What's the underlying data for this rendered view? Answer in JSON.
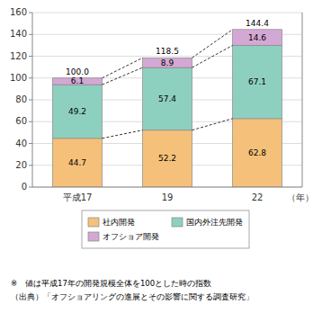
{
  "chart_data": {
    "type": "bar",
    "stacked": true,
    "data_labels": true,
    "grid": true,
    "legend": "bottom",
    "categories": [
      "平成17",
      "19",
      "22"
    ],
    "xlabel": "（年）",
    "series": [
      {
        "name": "社内開発",
        "color": "#f5c07a",
        "values": [
          44.7,
          52.2,
          62.8
        ]
      },
      {
        "name": "国内外注先開発",
        "color": "#8ed0c0",
        "values": [
          49.2,
          57.4,
          67.1
        ]
      },
      {
        "name": "オフショア開発",
        "color": "#d4a8d4",
        "values": [
          6.1,
          8.9,
          14.6
        ]
      }
    ],
    "totals": [
      100.0,
      118.5,
      144.4
    ],
    "total_labels": [
      "100.0",
      "118.5",
      "144.4"
    ],
    "ylim": [
      0,
      160
    ],
    "yticks": [
      0,
      20,
      40,
      60,
      80,
      100,
      120,
      140,
      160
    ],
    "annotations": [
      "※　値は平成17年の開発規模全体を100とした時の指数",
      "（出典）「オフショアリングの進展とその影響に関する調査研究」"
    ]
  }
}
